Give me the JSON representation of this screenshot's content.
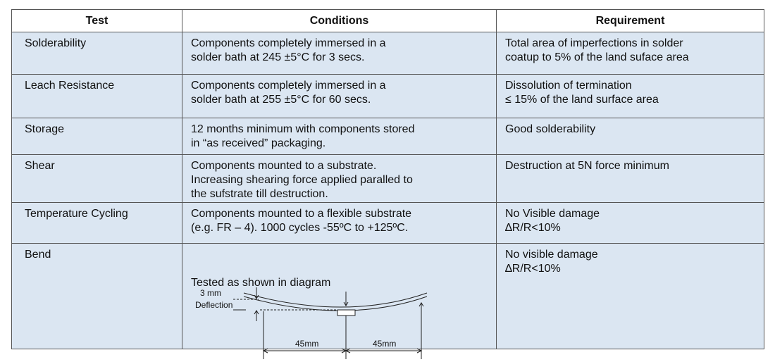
{
  "table": {
    "header": [
      "Test",
      "Conditions",
      "Requirement"
    ],
    "rows": [
      [
        "Solderability",
        "Components completely immersed in a\nsolder bath at 245 ±5°C for 3 secs.",
        "Total area of imperfections in solder\ncoatup to 5% of the land suface area"
      ],
      [
        "Leach Resistance",
        "Components completely immersed in a\nsolder bath at 255 ±5°C for 60 secs.",
        "Dissolution of termination\n≤ 15% of the land surface area"
      ],
      [
        "Storage",
        "12 months minimum with components stored\nin “as received” packaging.",
        "Good solderability"
      ],
      [
        "Shear",
        "Components mounted to a substrate.\nIncreasing shearing force applied paralled to\nthe sufstrate till destruction.",
        "Destruction at 5N force minimum"
      ],
      [
        "Temperature Cycling",
        "Components mounted to a flexible substrate\n(e.g. FR – 4). 1000 cycles -55ºC to +125ºC.",
        "No Visible damage\n∆R/R<10%"
      ],
      [
        "Bend",
        "Tested as shown in diagram",
        "No visible damage\n∆R/R<10%"
      ]
    ],
    "diagram": {
      "deflection_value": "3 mm",
      "deflection_label": "Deflection",
      "left_span": "45mm",
      "right_span": "45mm"
    }
  }
}
